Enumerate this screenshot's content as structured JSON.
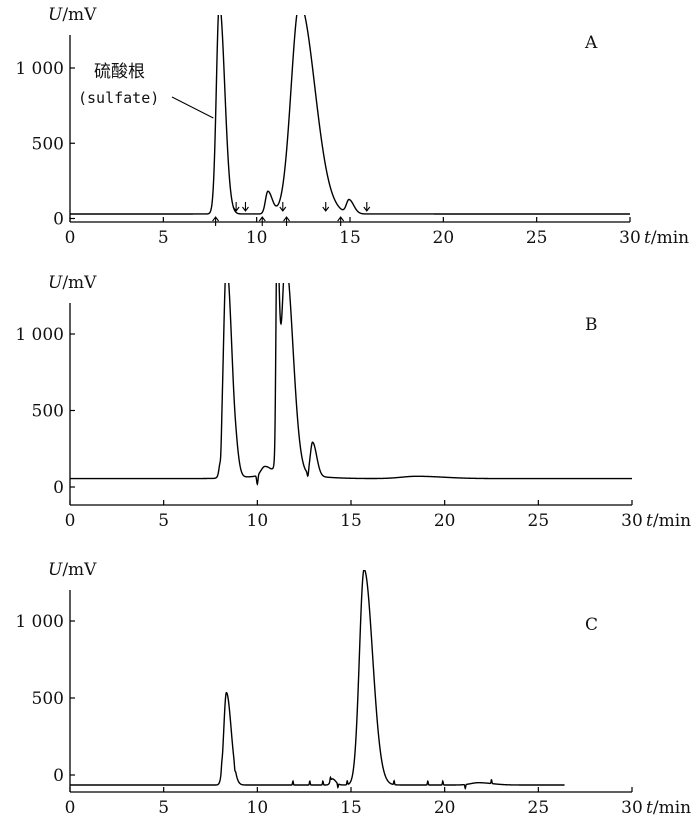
{
  "chart_data": [
    {
      "type": "line",
      "panel_label": "A",
      "ylabel": "U/mV",
      "xlabel": "t/min",
      "xlim": [
        0,
        30
      ],
      "ylim": [
        0,
        1200
      ],
      "xticks": [
        "0",
        "5",
        "10",
        "15",
        "20",
        "25",
        "30"
      ],
      "yticks": [
        {
          "value": 0,
          "label": "0"
        },
        {
          "value": 500,
          "label": "500"
        },
        {
          "value": 1000,
          "label": "1 000"
        }
      ],
      "annotation": {
        "line1": "硫酸根",
        "line2": "(sulfate)",
        "points_to_x": 8.0
      },
      "baseline": 30,
      "peaks": [
        {
          "x": 8.0,
          "height": 1400,
          "width": 0.16
        },
        {
          "x": 10.6,
          "height": 150,
          "width": 0.13
        },
        {
          "x": 12.3,
          "height": 1400,
          "width": 0.45
        },
        {
          "x": 14.95,
          "height": 90,
          "width": 0.14
        }
      ],
      "markers": [
        {
          "x": 7.8,
          "dir": "up"
        },
        {
          "x": 8.9,
          "dir": "down"
        },
        {
          "x": 9.4,
          "dir": "down"
        },
        {
          "x": 10.3,
          "dir": "up"
        },
        {
          "x": 11.4,
          "dir": "down"
        },
        {
          "x": 11.6,
          "dir": "up"
        },
        {
          "x": 13.7,
          "dir": "down"
        },
        {
          "x": 14.5,
          "dir": "up"
        },
        {
          "x": 15.9,
          "dir": "down"
        }
      ]
    },
    {
      "type": "line",
      "panel_label": "B",
      "ylabel": "U/mV",
      "xlabel": "t/min",
      "xlim": [
        0,
        30
      ],
      "ylim": [
        -100,
        1200
      ],
      "xticks": [
        "0",
        "5",
        "10",
        "15",
        "20",
        "25",
        "30"
      ],
      "yticks": [
        {
          "value": 0,
          "label": "0"
        },
        {
          "value": 500,
          "label": "500"
        },
        {
          "value": 1000,
          "label": "1 000"
        }
      ],
      "baseline": 55,
      "peaks": [
        {
          "x": 8.35,
          "height": 1400,
          "width": 0.16
        },
        {
          "x": 8.9,
          "height": 40,
          "width": 0.08
        },
        {
          "x": 10.4,
          "height": 60,
          "width": 0.2
        },
        {
          "x": 11.05,
          "height": 1400,
          "width": 0.06
        },
        {
          "x": 11.5,
          "height": 1400,
          "width": 0.22
        },
        {
          "x": 12.95,
          "height": 220,
          "width": 0.12
        },
        {
          "x": 18.5,
          "height": 15,
          "width": 0.8
        }
      ],
      "dips": [
        {
          "x": 8.05,
          "depth": 80
        },
        {
          "x": 10.0,
          "depth": 60
        },
        {
          "x": 10.95,
          "depth": 60
        },
        {
          "x": 12.7,
          "depth": 40
        }
      ],
      "markers": []
    },
    {
      "type": "line",
      "panel_label": "C",
      "ylabel": "U/mV",
      "xlabel": "t/min",
      "xlim": [
        0,
        30
      ],
      "ylim": [
        -100,
        1200
      ],
      "xticks": [
        "0",
        "5",
        "10",
        "15",
        "20",
        "25",
        "30"
      ],
      "yticks": [
        {
          "value": 0,
          "label": "0"
        },
        {
          "value": 500,
          "label": "500"
        },
        {
          "value": 1000,
          "label": "1 000"
        }
      ],
      "baseline": -65,
      "x_end": 26.4,
      "peaks": [
        {
          "x": 8.35,
          "height": 600,
          "width": 0.14
        },
        {
          "x": 15.7,
          "height": 1400,
          "width": 0.25
        },
        {
          "x": 14.0,
          "height": 40,
          "width": 0.1
        },
        {
          "x": 21.8,
          "height": 15,
          "width": 0.4
        }
      ],
      "spikes": [
        8.1,
        8.8,
        11.9,
        12.8,
        13.5,
        13.9,
        14.3,
        14.8,
        17.3,
        19.1,
        19.9,
        21.1,
        22.5
      ],
      "markers": []
    }
  ]
}
